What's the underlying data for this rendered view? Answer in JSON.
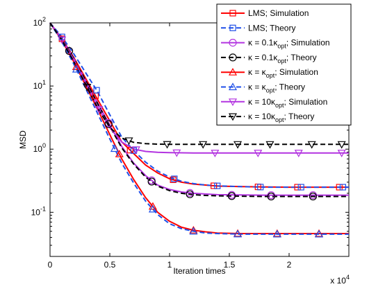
{
  "chart_data": {
    "type": "line",
    "xlabel": "Iteration times",
    "ylabel": "MSD",
    "x_multiplier": "x 10",
    "x_multiplier_exp": "4",
    "xlim": [
      0,
      25000
    ],
    "ylim": [
      0.02,
      100
    ],
    "y_scale": "log",
    "x_ticks": [
      {
        "value": 0,
        "label": "0"
      },
      {
        "value": 5000,
        "label": "0.5"
      },
      {
        "value": 10000,
        "label": "1"
      },
      {
        "value": 15000,
        "label": "1.5"
      },
      {
        "value": 20000,
        "label": "2"
      }
    ],
    "y_ticks": [
      {
        "value": 100,
        "base": "10",
        "exp": "2"
      },
      {
        "value": 10,
        "base": "10",
        "exp": "1"
      },
      {
        "value": 1,
        "base": "10",
        "exp": "0"
      },
      {
        "value": 0.1,
        "base": "10",
        "exp": "-1"
      }
    ],
    "legend_position": "top-right",
    "series": [
      {
        "name": "LMS; Simulation",
        "color": "#ff0000",
        "dash": "solid",
        "marker": "square",
        "points": [
          [
            0,
            100
          ],
          [
            1000,
            56
          ],
          [
            2000,
            28
          ],
          [
            3000,
            13
          ],
          [
            4000,
            6
          ],
          [
            5000,
            2.8
          ],
          [
            6000,
            1.3
          ],
          [
            7000,
            0.85
          ],
          [
            8000,
            0.56
          ],
          [
            9000,
            0.42
          ],
          [
            10000,
            0.34
          ],
          [
            11000,
            0.3
          ],
          [
            12000,
            0.28
          ],
          [
            13000,
            0.27
          ],
          [
            14000,
            0.26
          ],
          [
            16000,
            0.255
          ],
          [
            18000,
            0.252
          ],
          [
            20000,
            0.25
          ],
          [
            22000,
            0.25
          ],
          [
            25000,
            0.25
          ]
        ]
      },
      {
        "name": "LMS; Theory",
        "color": "#1f4fe8",
        "dash": "dashed",
        "marker": "square",
        "points": [
          [
            0,
            100
          ],
          [
            1000,
            60
          ],
          [
            2000,
            32
          ],
          [
            3000,
            16
          ],
          [
            4000,
            8
          ],
          [
            5000,
            3.5
          ],
          [
            6000,
            1.55
          ],
          [
            7000,
            0.95
          ],
          [
            8000,
            0.62
          ],
          [
            9000,
            0.45
          ],
          [
            10000,
            0.36
          ],
          [
            11000,
            0.31
          ],
          [
            12000,
            0.285
          ],
          [
            13000,
            0.27
          ],
          [
            14000,
            0.262
          ],
          [
            16000,
            0.255
          ],
          [
            18000,
            0.25
          ],
          [
            20000,
            0.25
          ],
          [
            22000,
            0.25
          ],
          [
            25000,
            0.25
          ]
        ]
      },
      {
        "name": "κ = 0.1κ_opt; Simulation",
        "label_main": "κ = 0.1κ",
        "label_sub": "opt",
        "label_tail": "; Simulation",
        "color": "#b233e0",
        "dash": "solid",
        "marker": "circle",
        "points": [
          [
            0,
            100
          ],
          [
            1000,
            55
          ],
          [
            2000,
            27
          ],
          [
            3000,
            12
          ],
          [
            4000,
            5.3
          ],
          [
            5000,
            2.4
          ],
          [
            6000,
            1.1
          ],
          [
            7000,
            0.6
          ],
          [
            8000,
            0.38
          ],
          [
            9000,
            0.27
          ],
          [
            10000,
            0.23
          ],
          [
            11000,
            0.21
          ],
          [
            12000,
            0.2
          ],
          [
            13000,
            0.195
          ],
          [
            14000,
            0.19
          ],
          [
            16000,
            0.188
          ],
          [
            18000,
            0.187
          ],
          [
            20000,
            0.187
          ],
          [
            22000,
            0.187
          ],
          [
            25000,
            0.187
          ]
        ]
      },
      {
        "name": "κ = 0.1κ_opt; Theory",
        "label_main": "κ = 0.1κ",
        "label_sub": "opt",
        "label_tail": "; Theory",
        "color": "#000000",
        "dash": "dashed",
        "marker": "circle",
        "points": [
          [
            0,
            100
          ],
          [
            1000,
            55
          ],
          [
            2000,
            27
          ],
          [
            3000,
            12
          ],
          [
            4000,
            5.2
          ],
          [
            5000,
            2.3
          ],
          [
            6000,
            1.05
          ],
          [
            7000,
            0.58
          ],
          [
            8000,
            0.36
          ],
          [
            9000,
            0.26
          ],
          [
            10000,
            0.22
          ],
          [
            11000,
            0.2
          ],
          [
            12000,
            0.19
          ],
          [
            13000,
            0.185
          ],
          [
            14000,
            0.182
          ],
          [
            16000,
            0.18
          ],
          [
            18000,
            0.178
          ],
          [
            20000,
            0.178
          ],
          [
            22000,
            0.178
          ],
          [
            25000,
            0.178
          ]
        ]
      },
      {
        "name": "κ = κ_opt; Simulation",
        "label_main": "κ = κ",
        "label_sub": "opt",
        "label_tail": "; Simulation",
        "color": "#ff0000",
        "dash": "solid",
        "marker": "triangle-up",
        "points": [
          [
            0,
            100
          ],
          [
            1000,
            52
          ],
          [
            2000,
            24
          ],
          [
            3000,
            10
          ],
          [
            4000,
            4.2
          ],
          [
            5000,
            1.7
          ],
          [
            6000,
            0.7
          ],
          [
            7000,
            0.33
          ],
          [
            8000,
            0.17
          ],
          [
            9000,
            0.1
          ],
          [
            10000,
            0.072
          ],
          [
            11000,
            0.058
          ],
          [
            12000,
            0.052
          ],
          [
            13000,
            0.049
          ],
          [
            14000,
            0.047
          ],
          [
            16000,
            0.046
          ],
          [
            18000,
            0.046
          ],
          [
            20000,
            0.046
          ],
          [
            22000,
            0.046
          ],
          [
            25000,
            0.046
          ]
        ]
      },
      {
        "name": "κ = κ_opt; Theory",
        "label_main": "κ = κ",
        "label_sub": "opt",
        "label_tail": "; Theory",
        "color": "#1f4fe8",
        "dash": "dashed",
        "marker": "triangle-up",
        "points": [
          [
            0,
            100
          ],
          [
            1000,
            50
          ],
          [
            2000,
            22
          ],
          [
            3000,
            9
          ],
          [
            4000,
            3.6
          ],
          [
            5000,
            1.45
          ],
          [
            6000,
            0.6
          ],
          [
            7000,
            0.29
          ],
          [
            8000,
            0.15
          ],
          [
            9000,
            0.092
          ],
          [
            10000,
            0.066
          ],
          [
            11000,
            0.055
          ],
          [
            12000,
            0.05
          ],
          [
            13000,
            0.047
          ],
          [
            14000,
            0.046
          ],
          [
            16000,
            0.045
          ],
          [
            18000,
            0.045
          ],
          [
            20000,
            0.045
          ],
          [
            22000,
            0.045
          ],
          [
            25000,
            0.045
          ]
        ]
      },
      {
        "name": "κ = 10κ_opt; Simulation",
        "label_main": "κ = 10κ",
        "label_sub": "opt",
        "label_tail": "; Simulation",
        "color": "#b233e0",
        "dash": "solid",
        "marker": "triangle-down",
        "points": [
          [
            0,
            100
          ],
          [
            1000,
            54
          ],
          [
            2000,
            26
          ],
          [
            3000,
            11
          ],
          [
            4000,
            4.6
          ],
          [
            5000,
            2.2
          ],
          [
            6000,
            1.3
          ],
          [
            7000,
            1.0
          ],
          [
            8000,
            0.92
          ],
          [
            9000,
            0.89
          ],
          [
            10000,
            0.88
          ],
          [
            12000,
            0.87
          ],
          [
            14000,
            0.87
          ],
          [
            16000,
            0.87
          ],
          [
            18000,
            0.87
          ],
          [
            20000,
            0.87
          ],
          [
            22000,
            0.87
          ],
          [
            25000,
            0.87
          ]
        ]
      },
      {
        "name": "κ = 10κ_opt; Theory",
        "label_main": "κ = 10κ",
        "label_sub": "opt",
        "label_tail": "; Theory",
        "color": "#000000",
        "dash": "dashed",
        "marker": "triangle-down",
        "points": [
          [
            0,
            100
          ],
          [
            1000,
            53
          ],
          [
            2000,
            24
          ],
          [
            3000,
            10.5
          ],
          [
            4000,
            4.4
          ],
          [
            5000,
            2.2
          ],
          [
            6000,
            1.5
          ],
          [
            7000,
            1.28
          ],
          [
            8000,
            1.22
          ],
          [
            9000,
            1.2
          ],
          [
            10000,
            1.19
          ],
          [
            12000,
            1.19
          ],
          [
            14000,
            1.19
          ],
          [
            16000,
            1.19
          ],
          [
            18000,
            1.19
          ],
          [
            20000,
            1.19
          ],
          [
            22000,
            1.19
          ],
          [
            25000,
            1.19
          ]
        ]
      }
    ],
    "markers": [
      {
        "series": 0,
        "x": [
          1000,
          3800,
          6700,
          10300,
          13700,
          17400,
          20700,
          24200
        ]
      },
      {
        "series": 1,
        "x": [
          1000,
          3900,
          7000,
          10400,
          14000,
          17600,
          21000,
          24500
        ]
      },
      {
        "series": 2,
        "x": [
          1600,
          4900,
          8500,
          11700,
          15200,
          18500,
          22000
        ]
      },
      {
        "series": 3,
        "x": [
          1600,
          4900,
          8500,
          11700,
          15200,
          18500,
          22000
        ]
      },
      {
        "series": 4,
        "x": [
          2200,
          5800,
          8600,
          12000,
          15700,
          19000,
          22500
        ]
      },
      {
        "series": 5,
        "x": [
          2200,
          5400,
          8600,
          12000,
          15700,
          19000,
          22500
        ]
      },
      {
        "series": 6,
        "x": [
          1000,
          4100,
          7200,
          10600,
          13800,
          17400,
          20800,
          24400
        ]
      },
      {
        "series": 7,
        "x": [
          3100,
          6600,
          9800,
          12800,
          15700,
          18400,
          21900,
          24400
        ]
      }
    ]
  }
}
